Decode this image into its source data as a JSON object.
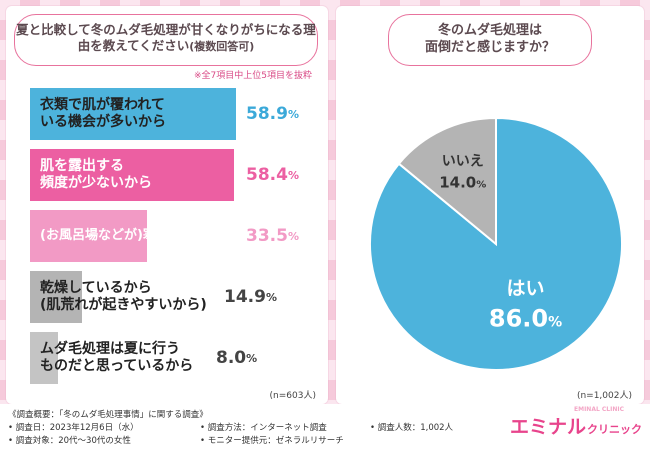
{
  "left": {
    "question": "夏と比較して冬のムダ毛処理が甘くなりがちになる理由を教えてください",
    "question_suffix": "(複数回答可)",
    "note": "※全7項目中上位5項目を抜粋",
    "n_label": "(n=603人)"
  },
  "right": {
    "question_line1": "冬のムダ毛処理は",
    "question_line2": "面倒だと感じますか？",
    "n_label": "(n=1,002人)"
  },
  "chart_data": [
    {
      "type": "bar",
      "orientation": "horizontal",
      "title": "夏と比較して冬のムダ毛処理が甘くなりがちになる理由を教えてください(複数回答可)",
      "categories": [
        "衣類で肌が覆われている機会が多いから",
        "肌を露出する頻度が少ないから",
        "(お風呂場などが)寒いから",
        "乾燥しているから(肌荒れが起きやすいから)",
        "ムダ毛処理は夏に行うものだと思っているから"
      ],
      "display_labels": [
        "衣類で肌が覆われて\nいる機会が多いから",
        "肌を露出する\n頻度が少ないから",
        "(お風呂場などが)寒いから",
        "乾燥しているから\n(肌荒れが起きやすいから)",
        "ムダ毛処理は夏に行う\nものだと思っているから"
      ],
      "values": [
        58.9,
        58.4,
        33.5,
        14.9,
        8.0
      ],
      "value_labels": [
        "58.9",
        "58.4",
        "33.5",
        "14.9",
        "8.0"
      ],
      "unit": "%",
      "colors": [
        "#4db3dc",
        "#ec5fa2",
        "#f29ac5",
        "#b4b4b4",
        "#c4c4c4"
      ],
      "label_colors": [
        "#222222",
        "#ffffff",
        "#ffffff",
        "#222222",
        "#222222"
      ],
      "value_colors": [
        "#3ba9d9",
        "#ec5fa2",
        "#f29ac5",
        "#444444",
        "#444444"
      ],
      "xlim": [
        0,
        100
      ]
    },
    {
      "type": "pie",
      "title": "冬のムダ毛処理は面倒だと感じますか？",
      "labels": [
        "はい",
        "いいえ"
      ],
      "values": [
        86.0,
        14.0
      ],
      "value_labels": [
        "86.0",
        "14.0"
      ],
      "unit": "%",
      "colors": [
        "#4db3dc",
        "#b4b4b4"
      ]
    }
  ],
  "footer": {
    "overview": "《調査概要：「冬のムダ毛処理事情」に関する調査》",
    "date": "• 調査日：2023年12月6日（水）",
    "target": "• 調査対象：20代〜30代の女性",
    "method": "• 調査方法：インターネット調査",
    "provider": "• モニター提供元：ゼネラルリサーチ",
    "count": "• 調査人数：1,002人"
  },
  "logo": {
    "main": "エミナル",
    "sub": "クリニック",
    "tag": "EMINAL CLINIC"
  }
}
